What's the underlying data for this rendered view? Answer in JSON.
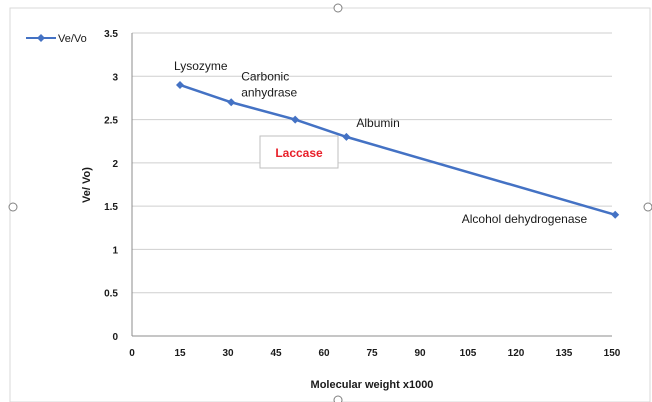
{
  "chart_data": {
    "type": "line",
    "title": "",
    "xlabel": "Molecular weight x1000",
    "ylabel": "Ve/ Vo)",
    "xlim": [
      0,
      150
    ],
    "ylim": [
      0,
      3.5
    ],
    "xticks": [
      "0",
      "15",
      "30",
      "45",
      "60",
      "75",
      "90",
      "105",
      "120",
      "135",
      "150"
    ],
    "yticks": [
      "0",
      "0.5",
      "1",
      "1.5",
      "2",
      "2.5",
      "3",
      "3.5"
    ],
    "grid": "horizontal",
    "legend_position": "top-left",
    "series": [
      {
        "name": "Ve/Vo",
        "color": "#4472c4",
        "x": [
          15,
          31,
          51,
          67,
          151
        ],
        "y": [
          2.9,
          2.7,
          2.5,
          2.3,
          1.4
        ]
      }
    ],
    "point_labels": [
      {
        "index": 0,
        "lines": [
          "Lysozyme"
        ]
      },
      {
        "index": 1,
        "lines": [
          "Carbonic",
          "anhydrase"
        ]
      },
      {
        "index": 3,
        "lines": [
          "Albumin"
        ]
      },
      {
        "index": 4,
        "lines": [
          "Alcohol dehydrogenase"
        ]
      }
    ],
    "annotation": {
      "text": "Laccase",
      "color": "#e8202a"
    }
  }
}
